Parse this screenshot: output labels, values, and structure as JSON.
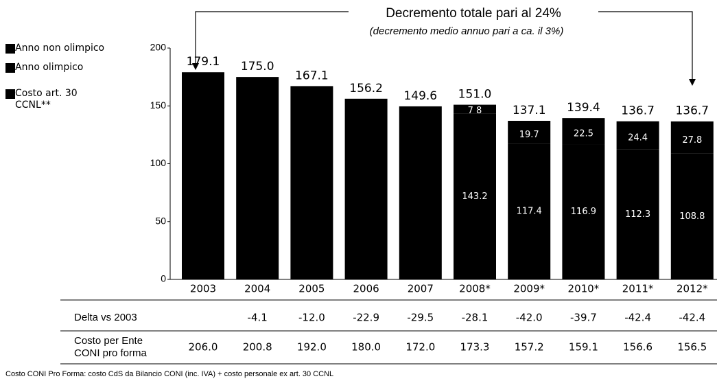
{
  "chart_data": {
    "type": "stacked_bar",
    "annotation_title": "Decremento totale pari al 24%",
    "annotation_subtitle": "(decremento medio annuo pari a ca. il 3%)",
    "categories": [
      "2003",
      "2004",
      "2005",
      "2006",
      "2007",
      "2008*",
      "2009*",
      "2010*",
      "2011*",
      "2012*"
    ],
    "series": [
      {
        "name": "Anno non olimpico",
        "color": "#000000",
        "values": [
          179.1,
          null,
          167.1,
          156.2,
          149.6,
          null,
          117.4,
          116.9,
          112.3,
          null
        ]
      },
      {
        "name": "Anno olimpico",
        "color": "#000000",
        "values": [
          null,
          175.0,
          null,
          null,
          null,
          143.2,
          null,
          null,
          null,
          108.8
        ]
      },
      {
        "name": "Costo art. 30 CCNL**",
        "color": "#000000",
        "values": [
          null,
          null,
          null,
          null,
          null,
          7.8,
          19.7,
          22.5,
          24.4,
          27.8
        ],
        "value_labels": [
          null,
          null,
          null,
          null,
          null,
          "7 8",
          "19.7",
          "22.5",
          "24.4",
          "27.8"
        ]
      }
    ],
    "totals": {
      "values": [
        179.1,
        175.0,
        167.1,
        156.2,
        149.6,
        151.0,
        137.1,
        139.4,
        136.7,
        136.7
      ],
      "value_labels": [
        "179.1",
        "175.0",
        "167.1",
        "156.2",
        "149.6",
        "151.0",
        "137.1",
        "139.4",
        "136.7",
        "136.7"
      ]
    },
    "ylim": [
      0,
      200
    ],
    "yticks": [
      0,
      50,
      100,
      150,
      200
    ]
  },
  "table": {
    "rows": [
      {
        "label_lines": [
          "Delta vs 2003"
        ],
        "values": [
          null,
          "-4.1",
          "-12.0",
          "-22.9",
          "-29.5",
          "-28.1",
          "-42.0",
          "-39.7",
          "-42.4",
          "-42.4"
        ]
      },
      {
        "label_lines": [
          "Costo per Ente",
          "CONI pro forma"
        ],
        "values": [
          "206.0",
          "200.8",
          "192.0",
          "180.0",
          "172.0",
          "173.3",
          "157.2",
          "159.1",
          "156.6",
          "156.5"
        ]
      }
    ]
  },
  "footnote": "Costo CONI Pro Forma: costo CdS da Bilancio CONI (inc. IVA) + costo personale ex art. 30 CCNL"
}
